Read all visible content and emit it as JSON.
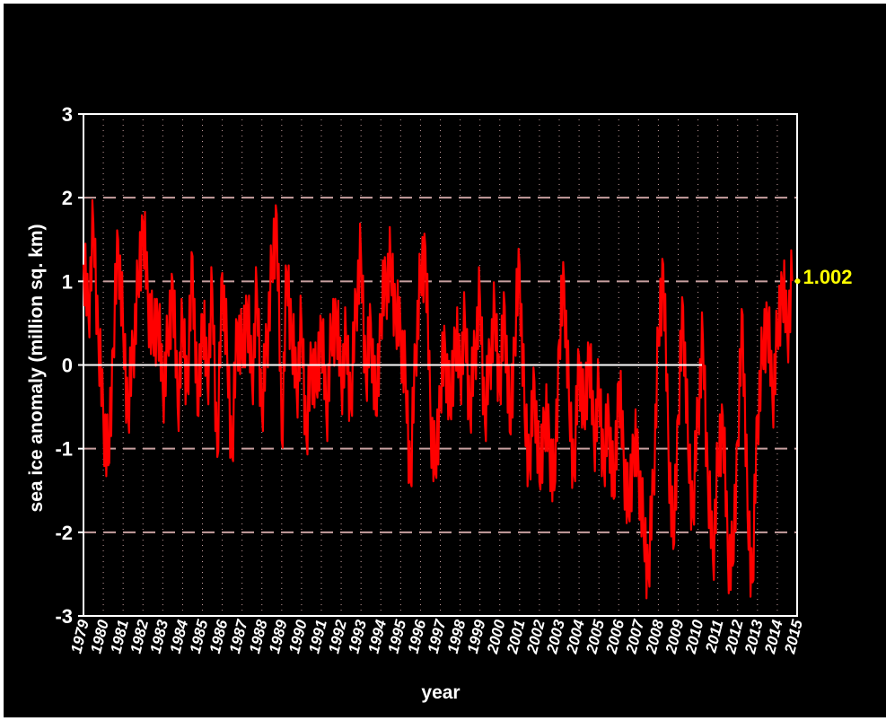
{
  "chart_data": {
    "type": "line",
    "title": "",
    "xlabel": "year",
    "ylabel": "sea ice anomaly (million sq. km)",
    "xlim": [
      1979,
      2015
    ],
    "ylim": [
      -3,
      3
    ],
    "x_ticks": [
      "1979",
      "1980",
      "1981",
      "1982",
      "1983",
      "1984",
      "1985",
      "1986",
      "1987",
      "1988",
      "1989",
      "1990",
      "1991",
      "1992",
      "1993",
      "1994",
      "1995",
      "1996",
      "1997",
      "1998",
      "1999",
      "2000",
      "2001",
      "2002",
      "2003",
      "2004",
      "2005",
      "2006",
      "2007",
      "2008",
      "2009",
      "2010",
      "2011",
      "2012",
      "2013",
      "2014",
      "2015"
    ],
    "y_ticks": [
      "3",
      "2",
      "1",
      "0",
      "-1",
      "-2",
      "-3"
    ],
    "y_tick_values": [
      3,
      2,
      1,
      0,
      -1,
      -2,
      -3
    ],
    "grid": {
      "vertical": "dotted",
      "horizontal_dashed_at": [
        2,
        1,
        -1,
        -2
      ],
      "zero_line": true
    },
    "series": [
      {
        "color": "#ff0000",
        "points": [
          [
            1979.0,
            1.2
          ],
          [
            1979.25,
            0.6
          ],
          [
            1979.5,
            1.7
          ],
          [
            1979.75,
            0.3
          ],
          [
            1980.0,
            -0.6
          ],
          [
            1980.25,
            -1.2
          ],
          [
            1980.5,
            0.2
          ],
          [
            1980.75,
            1.5
          ],
          [
            1981.0,
            0.4
          ],
          [
            1981.25,
            -0.6
          ],
          [
            1981.5,
            0.2
          ],
          [
            1981.75,
            0.9
          ],
          [
            1982.0,
            1.7
          ],
          [
            1982.25,
            0.8
          ],
          [
            1982.5,
            0.3
          ],
          [
            1982.75,
            0.6
          ],
          [
            1983.0,
            -0.3
          ],
          [
            1983.25,
            0.2
          ],
          [
            1983.5,
            1.0
          ],
          [
            1983.75,
            -0.5
          ],
          [
            1984.0,
            0.5
          ],
          [
            1984.25,
            -0.3
          ],
          [
            1984.5,
            1.3
          ],
          [
            1984.75,
            -0.6
          ],
          [
            1985.0,
            0.6
          ],
          [
            1985.25,
            -0.2
          ],
          [
            1985.5,
            0.9
          ],
          [
            1985.75,
            -1.1
          ],
          [
            1986.0,
            1.1
          ],
          [
            1986.25,
            0.1
          ],
          [
            1986.5,
            -1.1
          ],
          [
            1986.75,
            0.5
          ],
          [
            1987.0,
            0.1
          ],
          [
            1987.25,
            0.7
          ],
          [
            1987.5,
            -0.2
          ],
          [
            1987.75,
            0.9
          ],
          [
            1988.0,
            -0.6
          ],
          [
            1988.25,
            0.3
          ],
          [
            1988.5,
            1.1
          ],
          [
            1988.75,
            1.8
          ],
          [
            1989.0,
            -0.9
          ],
          [
            1989.25,
            1.1
          ],
          [
            1989.5,
            0.4
          ],
          [
            1989.75,
            -0.3
          ],
          [
            1990.0,
            0.5
          ],
          [
            1990.25,
            -0.9
          ],
          [
            1990.5,
            0.1
          ],
          [
            1990.75,
            -0.3
          ],
          [
            1991.0,
            0.5
          ],
          [
            1991.25,
            -0.6
          ],
          [
            1991.5,
            0.3
          ],
          [
            1991.75,
            0.6
          ],
          [
            1992.0,
            -0.2
          ],
          [
            1992.25,
            0.3
          ],
          [
            1992.5,
            -0.5
          ],
          [
            1992.75,
            0.8
          ],
          [
            1993.0,
            1.3
          ],
          [
            1993.25,
            -0.2
          ],
          [
            1993.5,
            0.5
          ],
          [
            1993.75,
            -0.6
          ],
          [
            1994.0,
            0.6
          ],
          [
            1994.25,
            1.0
          ],
          [
            1994.5,
            1.2
          ],
          [
            1994.75,
            0.6
          ],
          [
            1995.0,
            0.4
          ],
          [
            1995.25,
            -0.2
          ],
          [
            1995.5,
            -1.4
          ],
          [
            1995.75,
            0.2
          ],
          [
            1996.0,
            1.0
          ],
          [
            1996.25,
            1.4
          ],
          [
            1996.5,
            -0.6
          ],
          [
            1996.75,
            -1.3
          ],
          [
            1997.0,
            -0.3
          ],
          [
            1997.25,
            0.2
          ],
          [
            1997.5,
            -0.6
          ],
          [
            1997.75,
            0.4
          ],
          [
            1998.0,
            -0.1
          ],
          [
            1998.25,
            0.5
          ],
          [
            1998.5,
            -0.6
          ],
          [
            1998.75,
            0.2
          ],
          [
            1999.0,
            0.8
          ],
          [
            1999.25,
            -0.7
          ],
          [
            1999.5,
            0.1
          ],
          [
            1999.75,
            0.6
          ],
          [
            2000.0,
            -0.3
          ],
          [
            2000.25,
            0.7
          ],
          [
            2000.5,
            -0.8
          ],
          [
            2000.75,
            0.3
          ],
          [
            2001.0,
            1.2
          ],
          [
            2001.25,
            -0.6
          ],
          [
            2001.5,
            -1.2
          ],
          [
            2001.75,
            -0.2
          ],
          [
            2002.0,
            -1.4
          ],
          [
            2002.25,
            -0.6
          ],
          [
            2002.5,
            -0.9
          ],
          [
            2002.75,
            -1.5
          ],
          [
            2003.0,
            0.3
          ],
          [
            2003.25,
            1.0
          ],
          [
            2003.5,
            -0.5
          ],
          [
            2003.75,
            -1.3
          ],
          [
            2004.0,
            0.1
          ],
          [
            2004.25,
            -0.7
          ],
          [
            2004.5,
            0.2
          ],
          [
            2004.75,
            -0.9
          ],
          [
            2005.0,
            -0.3
          ],
          [
            2005.25,
            -1.2
          ],
          [
            2005.5,
            -0.6
          ],
          [
            2005.75,
            -1.6
          ],
          [
            2006.0,
            -0.2
          ],
          [
            2006.25,
            -1.1
          ],
          [
            2006.5,
            -1.8
          ],
          [
            2006.75,
            -0.9
          ],
          [
            2007.0,
            -1.2
          ],
          [
            2007.25,
            -2.0
          ],
          [
            2007.5,
            -2.5
          ],
          [
            2007.75,
            -1.4
          ],
          [
            2008.0,
            0.3
          ],
          [
            2008.25,
            1.2
          ],
          [
            2008.5,
            -0.9
          ],
          [
            2008.75,
            -2.2
          ],
          [
            2009.0,
            -0.6
          ],
          [
            2009.25,
            0.7
          ],
          [
            2009.5,
            -1.0
          ],
          [
            2009.75,
            -1.8
          ],
          [
            2010.0,
            -0.5
          ],
          [
            2010.25,
            0.3
          ],
          [
            2010.5,
            -1.4
          ],
          [
            2010.75,
            -2.3
          ],
          [
            2011.0,
            -1.2
          ],
          [
            2011.25,
            -0.6
          ],
          [
            2011.5,
            -2.2
          ],
          [
            2011.75,
            -2.4
          ],
          [
            2012.0,
            -0.9
          ],
          [
            2012.25,
            0.6
          ],
          [
            2012.5,
            -1.8
          ],
          [
            2012.75,
            -2.6
          ],
          [
            2013.0,
            -0.6
          ],
          [
            2013.25,
            0.1
          ],
          [
            2013.5,
            0.6
          ],
          [
            2013.75,
            -0.4
          ],
          [
            2014.0,
            0.3
          ],
          [
            2014.25,
            1.0
          ],
          [
            2014.5,
            0.4
          ],
          [
            2014.75,
            1.002
          ]
        ]
      }
    ],
    "end_value_label": "1.002",
    "end_value": [
      2014.75,
      1.002
    ],
    "colors": {
      "background": "#000000",
      "axes": "#ffffff",
      "line": "#ff0000",
      "grid": "#c8a0a0",
      "label": "#ffff00"
    }
  }
}
